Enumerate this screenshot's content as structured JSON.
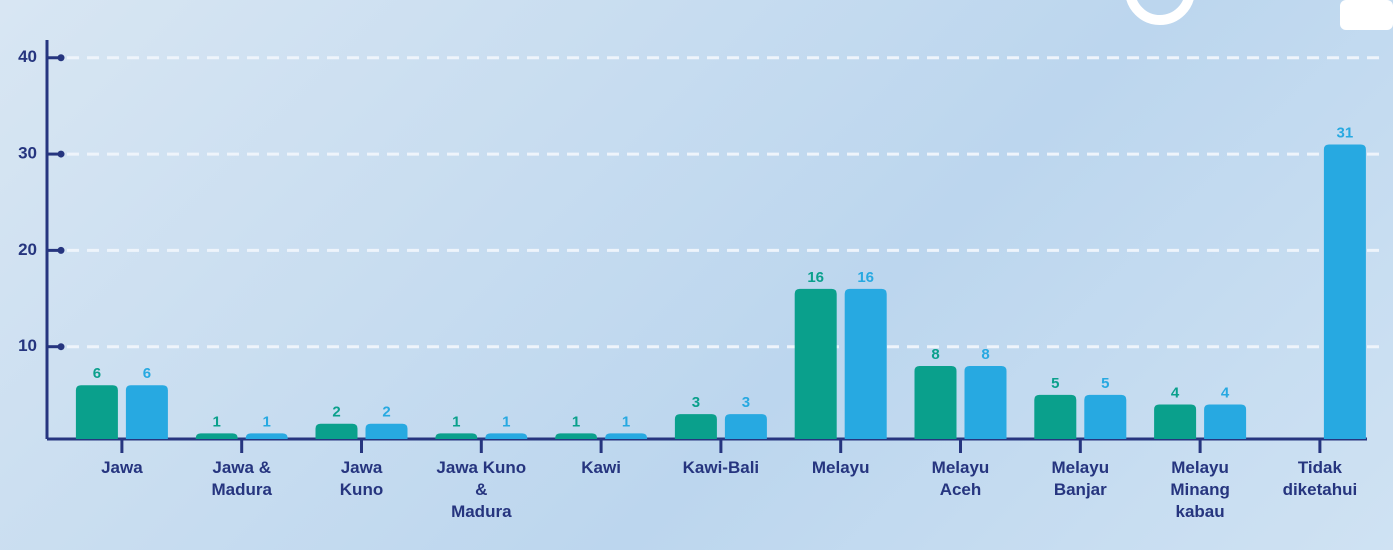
{
  "chart_data": {
    "type": "bar",
    "categories": [
      "Jawa",
      "Jawa &\nMadura",
      "Jawa\nKuno",
      "Jawa Kuno\n&\nMadura",
      "Kawi",
      "Kawi-Bali",
      "Melayu",
      "Melayu\nAceh",
      "Melayu\nBanjar",
      "Melayu\nMinang\nkabau",
      "Tidak\ndiketahui"
    ],
    "series": [
      {
        "color": "#0aa08c",
        "values": [
          6,
          1,
          2,
          1,
          1,
          3,
          16,
          8,
          5,
          4,
          null
        ]
      },
      {
        "color": "#27a9e1",
        "values": [
          6,
          1,
          2,
          1,
          1,
          3,
          16,
          8,
          5,
          4,
          31
        ]
      }
    ],
    "ylim": [
      0,
      42
    ],
    "yticks": [
      10,
      20,
      30,
      40
    ],
    "grid": true
  }
}
